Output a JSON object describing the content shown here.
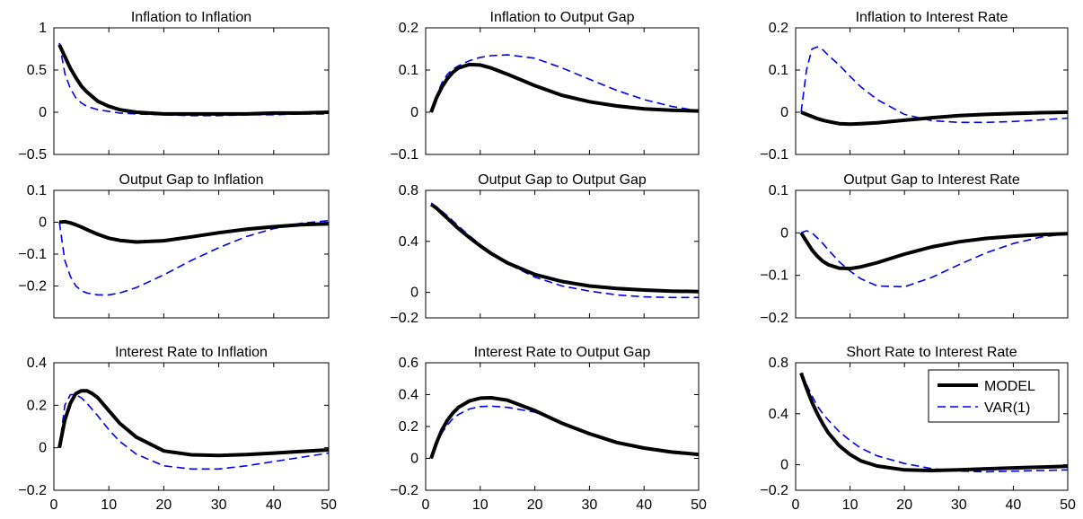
{
  "chart_data": [
    {
      "type": "line",
      "title": "Inflation to Inflation",
      "xlim": [
        0,
        50
      ],
      "ylim": [
        -0.5,
        1
      ],
      "yticks": [
        "−0.5",
        "0",
        "0.5",
        "1"
      ],
      "xtick_labels": false,
      "series": [
        {
          "name": "MODEL",
          "color": "#000000",
          "style": "solid",
          "x": [
            1,
            2,
            3,
            4,
            5,
            6,
            8,
            10,
            12,
            15,
            20,
            25,
            30,
            35,
            40,
            45,
            50
          ],
          "y": [
            0.8,
            0.66,
            0.52,
            0.41,
            0.31,
            0.24,
            0.13,
            0.07,
            0.03,
            0.0,
            -0.02,
            -0.02,
            -0.02,
            -0.02,
            -0.01,
            -0.01,
            0.0
          ]
        },
        {
          "name": "VAR(1)",
          "color": "#0000ee",
          "style": "dashed",
          "x": [
            1,
            2,
            3,
            4,
            5,
            6,
            8,
            10,
            12,
            15,
            20,
            25,
            30,
            35,
            40,
            45,
            50
          ],
          "y": [
            0.82,
            0.46,
            0.28,
            0.17,
            0.11,
            0.07,
            0.03,
            0.01,
            -0.01,
            -0.02,
            -0.03,
            -0.04,
            -0.04,
            -0.03,
            -0.03,
            -0.02,
            -0.02
          ]
        }
      ]
    },
    {
      "type": "line",
      "title": "Inflation to Output Gap",
      "xlim": [
        0,
        50
      ],
      "ylim": [
        -0.1,
        0.2
      ],
      "yticks": [
        "−0.1",
        "0",
        "0.1",
        "0.2"
      ],
      "xtick_labels": false,
      "series": [
        {
          "name": "MODEL",
          "color": "#000000",
          "style": "solid",
          "x": [
            1,
            2,
            3,
            4,
            5,
            6,
            8,
            10,
            12,
            15,
            20,
            25,
            30,
            35,
            40,
            45,
            50
          ],
          "y": [
            0.0,
            0.035,
            0.06,
            0.08,
            0.095,
            0.105,
            0.113,
            0.112,
            0.105,
            0.09,
            0.063,
            0.04,
            0.025,
            0.015,
            0.008,
            0.005,
            0.003
          ]
        },
        {
          "name": "VAR(1)",
          "color": "#0000ee",
          "style": "dashed",
          "x": [
            1,
            2,
            3,
            4,
            5,
            6,
            8,
            10,
            12,
            15,
            20,
            25,
            30,
            35,
            40,
            45,
            50
          ],
          "y": [
            0.0,
            0.04,
            0.07,
            0.09,
            0.102,
            0.11,
            0.122,
            0.13,
            0.134,
            0.136,
            0.128,
            0.105,
            0.078,
            0.052,
            0.03,
            0.014,
            0.003
          ]
        }
      ]
    },
    {
      "type": "line",
      "title": "Inflation to Interest Rate",
      "xlim": [
        0,
        50
      ],
      "ylim": [
        -0.1,
        0.2
      ],
      "yticks": [
        "−0.1",
        "0",
        "0.1",
        "0.2"
      ],
      "xtick_labels": false,
      "series": [
        {
          "name": "MODEL",
          "color": "#000000",
          "style": "solid",
          "x": [
            1,
            2,
            3,
            4,
            5,
            6,
            8,
            10,
            12,
            15,
            20,
            25,
            30,
            35,
            40,
            45,
            50
          ],
          "y": [
            0.0,
            -0.005,
            -0.01,
            -0.015,
            -0.019,
            -0.022,
            -0.027,
            -0.028,
            -0.027,
            -0.025,
            -0.019,
            -0.013,
            -0.008,
            -0.005,
            -0.003,
            -0.001,
            0.0
          ]
        },
        {
          "name": "VAR(1)",
          "color": "#0000ee",
          "style": "dashed",
          "x": [
            1,
            2,
            3,
            4,
            5,
            6,
            8,
            10,
            12,
            15,
            20,
            25,
            30,
            35,
            40,
            45,
            50
          ],
          "y": [
            0.0,
            0.1,
            0.15,
            0.155,
            0.148,
            0.135,
            0.112,
            0.085,
            0.06,
            0.03,
            -0.005,
            -0.02,
            -0.024,
            -0.024,
            -0.022,
            -0.018,
            -0.014
          ]
        }
      ]
    },
    {
      "type": "line",
      "title": "Output Gap to Inflation",
      "xlim": [
        0,
        50
      ],
      "ylim": [
        -0.3,
        0.1
      ],
      "yticks": [
        "−0.2",
        "−0.1",
        "0",
        "0.1"
      ],
      "xtick_labels": false,
      "series": [
        {
          "name": "MODEL",
          "color": "#000000",
          "style": "solid",
          "x": [
            1,
            2,
            3,
            4,
            5,
            6,
            8,
            10,
            12,
            15,
            20,
            25,
            30,
            35,
            40,
            45,
            50
          ],
          "y": [
            0.0,
            0.002,
            -0.002,
            -0.008,
            -0.015,
            -0.023,
            -0.038,
            -0.05,
            -0.057,
            -0.062,
            -0.058,
            -0.046,
            -0.033,
            -0.022,
            -0.014,
            -0.008,
            -0.005
          ]
        },
        {
          "name": "VAR(1)",
          "color": "#0000ee",
          "style": "dashed",
          "x": [
            1,
            2,
            3,
            4,
            5,
            6,
            8,
            10,
            12,
            15,
            20,
            25,
            30,
            35,
            40,
            45,
            50
          ],
          "y": [
            0.0,
            -0.12,
            -0.17,
            -0.2,
            -0.215,
            -0.222,
            -0.228,
            -0.228,
            -0.222,
            -0.205,
            -0.165,
            -0.12,
            -0.08,
            -0.045,
            -0.02,
            -0.003,
            0.005
          ]
        }
      ]
    },
    {
      "type": "line",
      "title": "Output Gap to Output Gap",
      "xlim": [
        0,
        50
      ],
      "ylim": [
        -0.2,
        0.8
      ],
      "yticks": [
        "−0.2",
        "0",
        "0.4",
        "0.8"
      ],
      "xtick_labels": false,
      "series": [
        {
          "name": "MODEL",
          "color": "#000000",
          "style": "solid",
          "x": [
            1,
            2,
            3,
            4,
            5,
            6,
            8,
            10,
            12,
            15,
            20,
            25,
            30,
            35,
            40,
            45,
            50
          ],
          "y": [
            0.69,
            0.66,
            0.62,
            0.58,
            0.54,
            0.5,
            0.43,
            0.365,
            0.305,
            0.23,
            0.14,
            0.085,
            0.05,
            0.03,
            0.018,
            0.01,
            0.006
          ]
        },
        {
          "name": "VAR(1)",
          "color": "#0000ee",
          "style": "dashed",
          "x": [
            1,
            2,
            3,
            4,
            5,
            6,
            8,
            10,
            12,
            15,
            20,
            25,
            30,
            35,
            40,
            45,
            50
          ],
          "y": [
            0.7,
            0.67,
            0.635,
            0.6,
            0.56,
            0.52,
            0.445,
            0.375,
            0.31,
            0.225,
            0.12,
            0.05,
            0.01,
            -0.02,
            -0.035,
            -0.04,
            -0.04
          ]
        }
      ]
    },
    {
      "type": "line",
      "title": "Output Gap to Interest Rate",
      "xlim": [
        0,
        50
      ],
      "ylim": [
        -0.2,
        0.1
      ],
      "yticks": [
        "−0.2",
        "−0.1",
        "0",
        "0.1"
      ],
      "xtick_labels": false,
      "series": [
        {
          "name": "MODEL",
          "color": "#000000",
          "style": "solid",
          "x": [
            1,
            2,
            3,
            4,
            5,
            6,
            8,
            10,
            12,
            15,
            20,
            25,
            30,
            35,
            40,
            45,
            50
          ],
          "y": [
            0.0,
            -0.02,
            -0.04,
            -0.055,
            -0.067,
            -0.075,
            -0.083,
            -0.084,
            -0.08,
            -0.07,
            -0.05,
            -0.033,
            -0.021,
            -0.013,
            -0.008,
            -0.004,
            -0.002
          ]
        },
        {
          "name": "VAR(1)",
          "color": "#0000ee",
          "style": "dashed",
          "x": [
            1,
            2,
            3,
            4,
            5,
            6,
            8,
            10,
            12,
            15,
            20,
            25,
            30,
            35,
            40,
            45,
            50
          ],
          "y": [
            0.0,
            0.005,
            0.0,
            -0.012,
            -0.025,
            -0.04,
            -0.068,
            -0.09,
            -0.108,
            -0.125,
            -0.127,
            -0.105,
            -0.075,
            -0.047,
            -0.025,
            -0.01,
            -0.002
          ]
        }
      ]
    },
    {
      "type": "line",
      "title": "Interest Rate to Inflation",
      "xlim": [
        0,
        50
      ],
      "ylim": [
        -0.2,
        0.4
      ],
      "yticks": [
        "−0.2",
        "0",
        "0.2",
        "0.4"
      ],
      "xtick_labels": false,
      "series": [
        {
          "name": "MODEL",
          "color": "#000000",
          "style": "solid",
          "x": [
            1,
            2,
            3,
            4,
            5,
            6,
            7,
            8,
            10,
            12,
            15,
            20,
            25,
            30,
            35,
            40,
            45,
            50
          ],
          "y": [
            0.0,
            0.13,
            0.21,
            0.255,
            0.268,
            0.268,
            0.255,
            0.235,
            0.175,
            0.115,
            0.05,
            -0.015,
            -0.033,
            -0.036,
            -0.032,
            -0.025,
            -0.017,
            -0.01
          ]
        },
        {
          "name": "VAR(1)",
          "color": "#0000ee",
          "style": "dashed",
          "x": [
            1,
            2,
            3,
            4,
            5,
            6,
            7,
            8,
            10,
            12,
            15,
            20,
            25,
            30,
            35,
            40,
            45,
            50
          ],
          "y": [
            0.0,
            0.2,
            0.25,
            0.25,
            0.235,
            0.21,
            0.18,
            0.15,
            0.085,
            0.03,
            -0.03,
            -0.085,
            -0.1,
            -0.1,
            -0.085,
            -0.065,
            -0.045,
            -0.025
          ]
        }
      ]
    },
    {
      "type": "line",
      "title": "Interest Rate to Output Gap",
      "xlim": [
        0,
        50
      ],
      "ylim": [
        -0.2,
        0.6
      ],
      "yticks": [
        "−0.2",
        "0",
        "0.2",
        "0.4",
        "0.6"
      ],
      "xtick_labels": false,
      "series": [
        {
          "name": "MODEL",
          "color": "#000000",
          "style": "solid",
          "x": [
            1,
            2,
            3,
            4,
            5,
            6,
            8,
            10,
            12,
            15,
            20,
            25,
            30,
            35,
            40,
            45,
            50
          ],
          "y": [
            0.0,
            0.1,
            0.18,
            0.24,
            0.285,
            0.32,
            0.36,
            0.378,
            0.38,
            0.365,
            0.3,
            0.22,
            0.155,
            0.1,
            0.065,
            0.04,
            0.025
          ]
        },
        {
          "name": "VAR(1)",
          "color": "#0000ee",
          "style": "dashed",
          "x": [
            1,
            2,
            3,
            4,
            5,
            6,
            8,
            10,
            12,
            15,
            20,
            25,
            30,
            35,
            40,
            45,
            50
          ],
          "y": [
            0.0,
            0.09,
            0.16,
            0.21,
            0.25,
            0.275,
            0.31,
            0.325,
            0.328,
            0.32,
            0.29,
            0.22,
            0.15,
            0.1,
            0.06,
            0.035,
            0.02
          ]
        }
      ]
    },
    {
      "type": "line",
      "title": "Short Rate to Interest Rate",
      "xlim": [
        0,
        50
      ],
      "ylim": [
        -0.2,
        0.8
      ],
      "yticks": [
        "−0.2",
        "0",
        "0.4",
        "0.8"
      ],
      "xtick_labels": true,
      "xticks": [
        "0",
        "10",
        "20",
        "30",
        "40",
        "50"
      ],
      "legend": "top-right",
      "series": [
        {
          "name": "MODEL",
          "color": "#000000",
          "style": "solid",
          "x": [
            1,
            2,
            3,
            4,
            5,
            6,
            8,
            10,
            12,
            15,
            20,
            25,
            30,
            35,
            40,
            45,
            50
          ],
          "y": [
            0.72,
            0.6,
            0.49,
            0.4,
            0.32,
            0.25,
            0.15,
            0.08,
            0.03,
            -0.01,
            -0.04,
            -0.045,
            -0.04,
            -0.032,
            -0.025,
            -0.018,
            -0.012
          ]
        },
        {
          "name": "VAR(1)",
          "color": "#0000ee",
          "style": "dashed",
          "x": [
            1,
            2,
            3,
            4,
            5,
            6,
            8,
            10,
            12,
            15,
            20,
            25,
            30,
            35,
            40,
            45,
            50
          ],
          "y": [
            0.72,
            0.63,
            0.54,
            0.46,
            0.4,
            0.35,
            0.26,
            0.19,
            0.13,
            0.07,
            0.01,
            -0.03,
            -0.05,
            -0.055,
            -0.05,
            -0.045,
            -0.04
          ]
        }
      ]
    }
  ],
  "shared_xticks": [
    "0",
    "10",
    "20",
    "30",
    "40",
    "50"
  ],
  "legend_labels": [
    "MODEL",
    "VAR(1)"
  ]
}
